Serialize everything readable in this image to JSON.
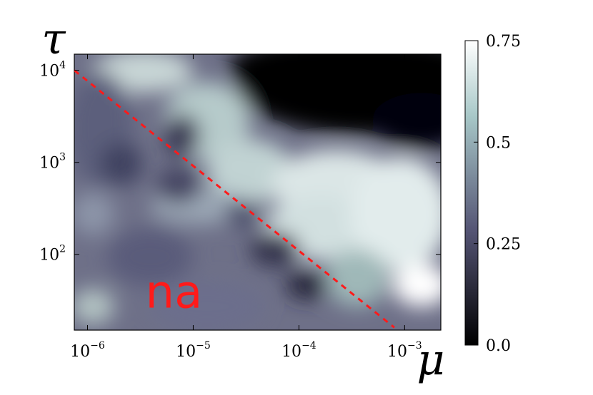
{
  "chart_data": {
    "type": "heatmap",
    "x_axis": {
      "label": "μ",
      "scale": "log",
      "range": [
        7.5e-07,
        0.0022
      ],
      "ticks": [
        {
          "value": 1e-06,
          "base": "10",
          "exp": "−6"
        },
        {
          "value": 1e-05,
          "base": "10",
          "exp": "−5"
        },
        {
          "value": 0.0001,
          "base": "10",
          "exp": "−4"
        },
        {
          "value": 0.001,
          "base": "10",
          "exp": "−3"
        }
      ]
    },
    "y_axis": {
      "label": "τ",
      "scale": "log",
      "range": [
        15,
        15000
      ],
      "ticks": [
        {
          "value": 100,
          "base": "10",
          "exp": "2"
        },
        {
          "value": 1000,
          "base": "10",
          "exp": "3"
        },
        {
          "value": 10000,
          "base": "10",
          "exp": "4"
        }
      ]
    },
    "colorbar": {
      "colormap": "bone",
      "range": [
        0.0,
        0.75
      ],
      "ticks": [
        {
          "value": 0.0,
          "label": "0.0"
        },
        {
          "value": 0.25,
          "label": "0.25"
        },
        {
          "value": 0.5,
          "label": "0.5"
        },
        {
          "value": 0.75,
          "label": "0.75"
        }
      ]
    },
    "reference_line": {
      "style": "dashed",
      "color": "#ff1a1a",
      "points": [
        [
          7.5e-07,
          10000
        ],
        [
          0.0008,
          16
        ]
      ]
    },
    "annotations": [
      {
        "text": "na",
        "x": 1e-05,
        "y": 50,
        "color": "#ff1a1a"
      }
    ],
    "grid": false
  }
}
